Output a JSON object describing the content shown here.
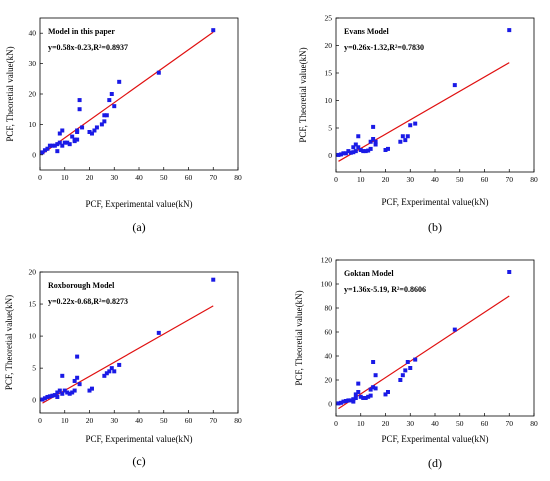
{
  "chart_data": [
    {
      "type": "scatter",
      "panel_label": "(a)",
      "model_name": "Model in this paper",
      "equation": "y=0.58x-0.23,R²=0.8937",
      "xlabel": "PCF, Experimental value(kN)",
      "ylabel": "PCF, Theoretial value(kN)",
      "xlim": [
        0,
        80
      ],
      "ylim": [
        -5,
        45
      ],
      "xticks": [
        0,
        10,
        20,
        30,
        40,
        50,
        60,
        70,
        80
      ],
      "yticks": [
        0,
        10,
        20,
        30,
        40
      ],
      "fit": {
        "slope": 0.58,
        "intercept": -0.23
      },
      "fit_range": [
        1,
        70
      ],
      "colors": {
        "points": "#1a1ae6",
        "fit": "#e01010"
      },
      "points": [
        [
          1,
          0.8
        ],
        [
          2,
          1.5
        ],
        [
          3,
          2
        ],
        [
          4,
          3
        ],
        [
          5,
          3
        ],
        [
          6,
          3
        ],
        [
          7,
          3.5
        ],
        [
          7,
          1.2
        ],
        [
          8,
          4
        ],
        [
          8,
          7
        ],
        [
          9,
          8
        ],
        [
          9,
          3
        ],
        [
          10,
          4
        ],
        [
          11,
          4
        ],
        [
          12,
          3.5
        ],
        [
          13,
          6
        ],
        [
          14,
          4.5
        ],
        [
          14,
          5
        ],
        [
          15,
          5
        ],
        [
          15,
          7.5
        ],
        [
          15,
          8
        ],
        [
          16,
          18
        ],
        [
          16,
          15
        ],
        [
          17,
          9
        ],
        [
          20,
          7.5
        ],
        [
          21,
          7
        ],
        [
          22,
          8
        ],
        [
          23,
          9
        ],
        [
          25,
          10
        ],
        [
          26,
          11
        ],
        [
          26,
          13
        ],
        [
          27,
          13
        ],
        [
          28,
          18
        ],
        [
          29,
          20
        ],
        [
          30,
          16
        ],
        [
          32,
          24
        ],
        [
          48,
          27
        ],
        [
          70,
          41
        ]
      ]
    },
    {
      "type": "scatter",
      "panel_label": "(b)",
      "model_name": "Evans Model",
      "equation": "y=0.26x-1.32,R²=0.7830",
      "xlabel": "PCF, Experimental value(kN)",
      "ylabel": "PCF, Theoretial value(kN)",
      "xlim": [
        0,
        80
      ],
      "ylim": [
        -3,
        25
      ],
      "xticks": [
        0,
        10,
        20,
        30,
        40,
        50,
        60,
        70,
        80
      ],
      "yticks": [
        0,
        5,
        10,
        15,
        20,
        25
      ],
      "fit": {
        "slope": 0.26,
        "intercept": -1.32
      },
      "fit_range": [
        1,
        70
      ],
      "colors": {
        "points": "#1a1ae6",
        "fit": "#e01010"
      },
      "points": [
        [
          1,
          0.1
        ],
        [
          2,
          0.2
        ],
        [
          3,
          0.4
        ],
        [
          4,
          0.4
        ],
        [
          5,
          0.8
        ],
        [
          6,
          0.5
        ],
        [
          7,
          1.5
        ],
        [
          7,
          0.6
        ],
        [
          8,
          2
        ],
        [
          8,
          0.8
        ],
        [
          9,
          1.5
        ],
        [
          9,
          3.5
        ],
        [
          10,
          1
        ],
        [
          11,
          0.8
        ],
        [
          12,
          0.8
        ],
        [
          13,
          0.9
        ],
        [
          14,
          1.2
        ],
        [
          14,
          2.5
        ],
        [
          15,
          3
        ],
        [
          15,
          5.2
        ],
        [
          16,
          2
        ],
        [
          16,
          2.5
        ],
        [
          20,
          1
        ],
        [
          21,
          1.2
        ],
        [
          26,
          2.5
        ],
        [
          27,
          3.5
        ],
        [
          28,
          2.8
        ],
        [
          29,
          3.5
        ],
        [
          30,
          5.5
        ],
        [
          32,
          5.8
        ],
        [
          48,
          12.8
        ],
        [
          70,
          22.8
        ]
      ]
    },
    {
      "type": "scatter",
      "panel_label": "(c)",
      "model_name": "Roxborough Model",
      "equation": "y=0.22x-0.68,R²=0.8273",
      "xlabel": "PCF, Experimental value(kN)",
      "ylabel": "PCF, Theoretial value(kN)",
      "xlim": [
        0,
        80
      ],
      "ylim": [
        -2,
        20
      ],
      "xticks": [
        0,
        10,
        20,
        30,
        40,
        50,
        60,
        70,
        80
      ],
      "yticks": [
        0,
        5,
        10,
        15,
        20
      ],
      "fit": {
        "slope": 0.22,
        "intercept": -0.68
      },
      "fit_range": [
        1,
        70
      ],
      "colors": {
        "points": "#1a1ae6",
        "fit": "#e01010"
      },
      "points": [
        [
          1,
          0.1
        ],
        [
          2,
          0.3
        ],
        [
          3,
          0.5
        ],
        [
          4,
          0.6
        ],
        [
          5,
          0.7
        ],
        [
          6,
          0.8
        ],
        [
          7,
          0.5
        ],
        [
          7,
          1.2
        ],
        [
          8,
          1.5
        ],
        [
          9,
          1
        ],
        [
          9,
          3.8
        ],
        [
          10,
          1.5
        ],
        [
          11,
          1.2
        ],
        [
          12,
          1
        ],
        [
          13,
          1.2
        ],
        [
          14,
          1.5
        ],
        [
          14,
          3
        ],
        [
          15,
          3.5
        ],
        [
          15,
          6.8
        ],
        [
          16,
          2.5
        ],
        [
          20,
          1.5
        ],
        [
          21,
          1.8
        ],
        [
          26,
          3.8
        ],
        [
          27,
          4.2
        ],
        [
          28,
          4.5
        ],
        [
          29,
          5
        ],
        [
          30,
          4.5
        ],
        [
          32,
          5.5
        ],
        [
          48,
          10.5
        ],
        [
          70,
          18.8
        ]
      ]
    },
    {
      "type": "scatter",
      "panel_label": "(d)",
      "model_name": "Goktan Model",
      "equation": "y=1.36x-5.19, R²=0.8606",
      "xlabel": "PCF, Experimental value(kN)",
      "ylabel": "PCF, Theoretial value(kN)",
      "xlim": [
        0,
        80
      ],
      "ylim": [
        -10,
        120
      ],
      "xticks": [
        0,
        10,
        20,
        30,
        40,
        50,
        60,
        70,
        80
      ],
      "yticks": [
        0,
        20,
        40,
        60,
        80,
        100,
        120
      ],
      "fit": {
        "slope": 1.36,
        "intercept": -5.19
      },
      "fit_range": [
        1,
        70
      ],
      "colors": {
        "points": "#1a1ae6",
        "fit": "#e01010"
      },
      "points": [
        [
          1,
          0.5
        ],
        [
          2,
          1
        ],
        [
          3,
          2
        ],
        [
          4,
          2.5
        ],
        [
          5,
          3
        ],
        [
          6,
          3
        ],
        [
          7,
          2
        ],
        [
          7,
          4
        ],
        [
          8,
          5
        ],
        [
          8,
          8
        ],
        [
          9,
          10
        ],
        [
          9,
          17
        ],
        [
          10,
          6
        ],
        [
          11,
          5
        ],
        [
          12,
          5
        ],
        [
          13,
          6
        ],
        [
          14,
          7
        ],
        [
          14,
          12
        ],
        [
          15,
          14
        ],
        [
          15,
          35
        ],
        [
          16,
          24
        ],
        [
          16,
          13
        ],
        [
          20,
          8
        ],
        [
          21,
          10
        ],
        [
          26,
          20
        ],
        [
          27,
          24
        ],
        [
          28,
          28
        ],
        [
          29,
          35
        ],
        [
          30,
          30
        ],
        [
          32,
          37
        ],
        [
          48,
          62
        ],
        [
          70,
          110
        ]
      ]
    }
  ]
}
